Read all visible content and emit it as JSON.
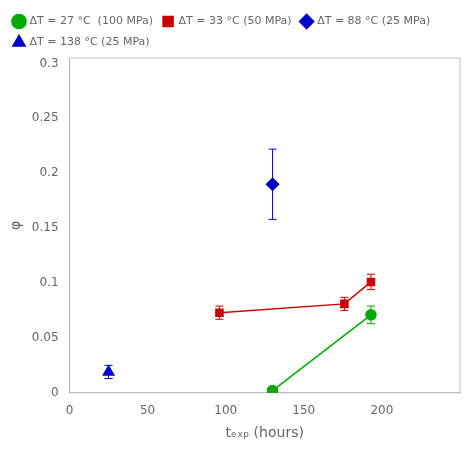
{
  "chart_data": {
    "type": "scatter",
    "xlabel": "tₑₓₚ (hours)",
    "ylabel": "φ",
    "series": [
      {
        "name": "ΔT = 27 °C  (100 MPa)",
        "color": "#00aa00",
        "marker": "circle",
        "line_style": "solid",
        "x": [
          130,
          193
        ],
        "values": [
          0.002,
          0.071
        ],
        "yerr": [
          0.0,
          0.008
        ]
      },
      {
        "name": "ΔT = 33 °C (50 MPa)",
        "color": "#cc0000",
        "marker": "square",
        "line_style": "solid",
        "x": [
          96,
          176,
          193
        ],
        "values": [
          0.073,
          0.081,
          0.101
        ],
        "yerr": [
          0.006,
          0.006,
          0.007
        ]
      },
      {
        "name": "ΔT = 88 °C (25 MPa)",
        "color": "#0000cc",
        "marker": "diamond",
        "line_style": "none",
        "x": [
          130
        ],
        "values": [
          0.19
        ],
        "yerr": [
          0.032
        ]
      },
      {
        "name": "ΔT = 138 °C (25 MPa)",
        "color": "#0000cc",
        "marker": "triangle",
        "line_style": "none",
        "x": [
          25
        ],
        "values": [
          0.019
        ],
        "yerr": [
          0.006
        ]
      }
    ],
    "xlim": [
      0,
      250
    ],
    "ylim": [
      0,
      0.305
    ],
    "xticks": [
      0,
      50,
      100,
      150,
      200
    ],
    "yticks": [
      0,
      0.05,
      0.1,
      0.15,
      0.2,
      0.25,
      0.3
    ],
    "grid": false,
    "legend": "upper left"
  }
}
